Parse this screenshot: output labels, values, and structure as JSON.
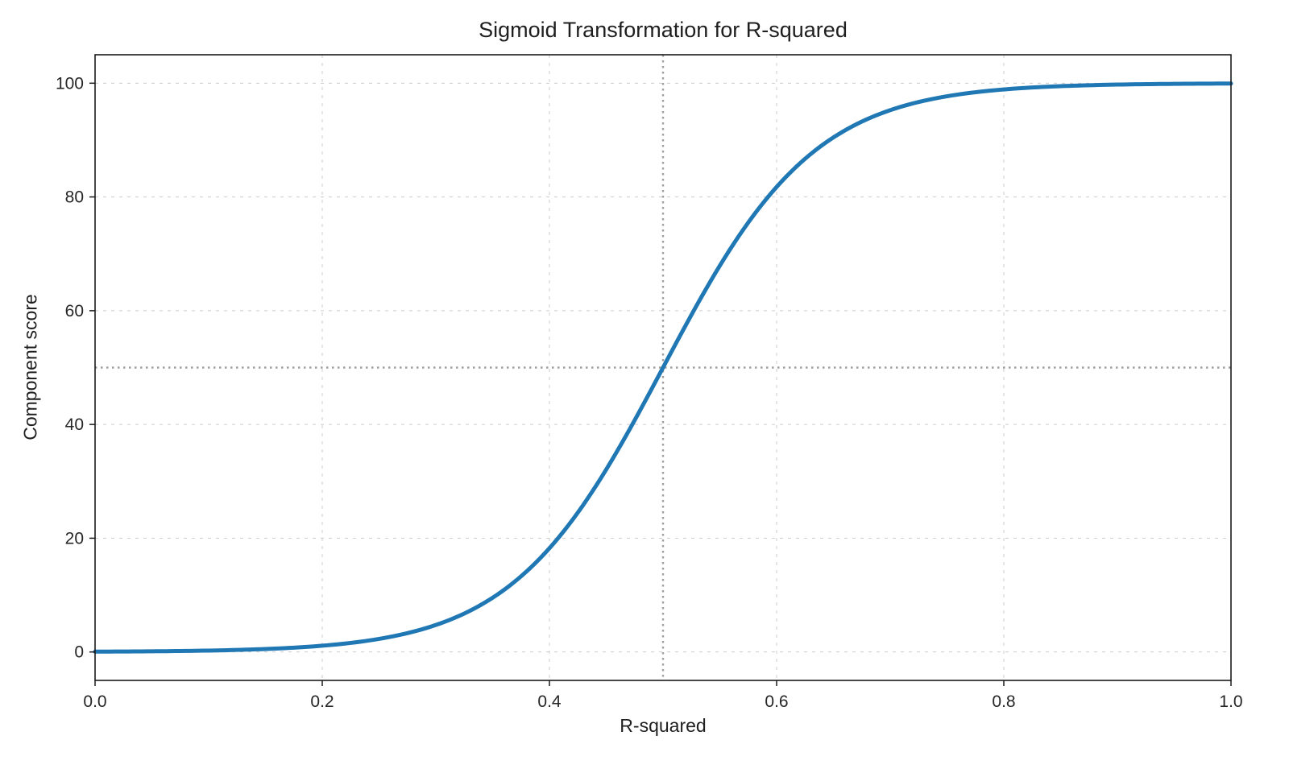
{
  "chart_data": {
    "type": "line",
    "title": "Sigmoid Transformation for R-squared",
    "xlabel": "R-squared",
    "ylabel": "Component score",
    "xlim": [
      0,
      1
    ],
    "ylim": [
      -5,
      105
    ],
    "x_ticks": [
      0.0,
      0.2,
      0.4,
      0.6,
      0.8,
      1.0
    ],
    "x_tick_labels": [
      "0.0",
      "0.2",
      "0.4",
      "0.6",
      "0.8",
      "1.0"
    ],
    "y_ticks": [
      0,
      20,
      40,
      60,
      80,
      100
    ],
    "y_tick_labels": [
      "0",
      "20",
      "40",
      "60",
      "80",
      "100"
    ],
    "grid": true,
    "grid_color": "#cccccc",
    "axis_color": "#1a1a1a",
    "text_color": "#262626",
    "series": [
      {
        "name": "sigmoid",
        "color": "#1f77b4",
        "line_width": 5,
        "function": {
          "form": "logistic",
          "scale": 100,
          "midpoint": 0.5,
          "steepness": 15
        },
        "points": [
          [
            0.0,
            0.06
          ],
          [
            0.05,
            0.12
          ],
          [
            0.1,
            0.25
          ],
          [
            0.15,
            0.52
          ],
          [
            0.2,
            1.1
          ],
          [
            0.25,
            2.3
          ],
          [
            0.3,
            4.74
          ],
          [
            0.35,
            9.53
          ],
          [
            0.4,
            18.24
          ],
          [
            0.45,
            32.08
          ],
          [
            0.5,
            50.0
          ],
          [
            0.55,
            67.92
          ],
          [
            0.6,
            81.76
          ],
          [
            0.65,
            90.46
          ],
          [
            0.7,
            95.26
          ],
          [
            0.75,
            97.7
          ],
          [
            0.8,
            98.9
          ],
          [
            0.85,
            99.48
          ],
          [
            0.9,
            99.75
          ],
          [
            0.95,
            99.88
          ],
          [
            1.0,
            99.94
          ]
        ]
      }
    ],
    "reference_lines": [
      {
        "orientation": "vertical",
        "value": 0.5,
        "style": "dotted",
        "color": "#9e9e9e"
      },
      {
        "orientation": "horizontal",
        "value": 50,
        "style": "dotted",
        "color": "#9e9e9e"
      }
    ]
  }
}
